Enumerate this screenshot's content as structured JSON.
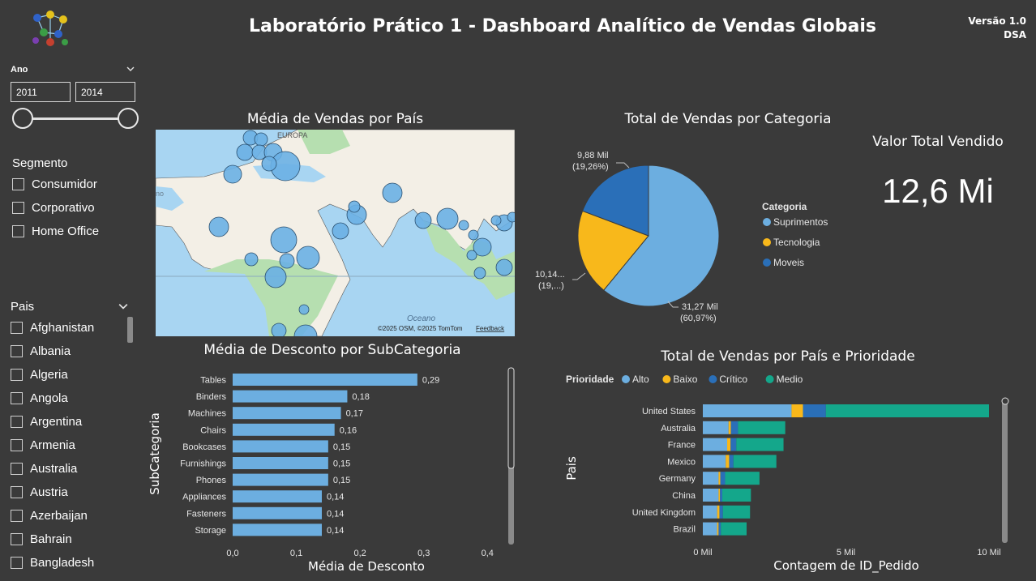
{
  "header": {
    "title": "Laboratório Prático 1 - Dashboard Analítico de Vendas Globais",
    "version": "Versão 1.0",
    "author": "DSA"
  },
  "year_slicer": {
    "label": "Ano",
    "from": "2011",
    "to": "2014"
  },
  "segment_slicer": {
    "title": "Segmento",
    "items": [
      "Consumidor",
      "Corporativo",
      "Home Office"
    ]
  },
  "country_slicer": {
    "title": "Pais",
    "items": [
      "Afghanistan",
      "Albania",
      "Algeria",
      "Angola",
      "Argentina",
      "Armenia",
      "Australia",
      "Austria",
      "Azerbaijan",
      "Bahrain",
      "Bangladesh"
    ]
  },
  "map": {
    "title": "Média de Vendas por País",
    "labels": {
      "europe": "EUROPA",
      "ocean": "Oceano",
      "ocean_left": "no",
      "attribution": "©2025 OSM, ©2025 TomTom",
      "feedback": "Feedback"
    },
    "colors": {
      "water": "#a8d5f2",
      "land": "#f3efe6",
      "green": "#b6dfb0",
      "bubble": "#6ab0e4"
    }
  },
  "pie": {
    "title": "Total de Vendas por Categoria",
    "legend_title": "Categoria",
    "labels": {
      "moveis": [
        "9,88 Mil",
        "(19,26%)"
      ],
      "tecnologia": [
        "10,14...",
        "(19,...)"
      ],
      "suprimentos": [
        "31,27 Mil",
        "(60,97%)"
      ]
    }
  },
  "kpi": {
    "title": "Valor Total Vendido",
    "value": "12,6 Mi"
  },
  "discount_chart": {
    "title": "Média de Desconto por SubCategoria",
    "xlabel": "Média de Desconto",
    "ylabel": "SubCategoria"
  },
  "orders_chart": {
    "title": "Total de Vendas por País e Prioridade",
    "legend_title": "Prioridade",
    "xlabel": "Contagem de ID_Pedido",
    "ylabel": "Pais"
  },
  "chart_data": [
    {
      "type": "pie",
      "title": "Total de Vendas por Categoria",
      "legend_title": "Categoria",
      "slices": [
        {
          "name": "Suprimentos",
          "value": 31.27,
          "label": "31,27 Mil",
          "pct": "60,97%",
          "color": "#6caee0"
        },
        {
          "name": "Tecnologia",
          "value": 10.14,
          "label": "10,14...",
          "pct": "19,...",
          "color": "#f8b81b"
        },
        {
          "name": "Moveis",
          "value": 9.88,
          "label": "9,88 Mil",
          "pct": "19,26%",
          "color": "#2a6fb8"
        }
      ]
    },
    {
      "type": "bar",
      "orientation": "horizontal",
      "title": "Média de Desconto por SubCategoria",
      "xlabel": "Média de Desconto",
      "ylabel": "SubCategoria",
      "categories": [
        "Tables",
        "Binders",
        "Machines",
        "Chairs",
        "Bookcases",
        "Furnishings",
        "Phones",
        "Appliances",
        "Fasteners",
        "Storage"
      ],
      "values": [
        0.29,
        0.18,
        0.17,
        0.16,
        0.15,
        0.15,
        0.15,
        0.14,
        0.14,
        0.14
      ],
      "value_labels": [
        "0,29",
        "0,18",
        "0,17",
        "0,16",
        "0,15",
        "0,15",
        "0,15",
        "0,14",
        "0,14",
        "0,14"
      ],
      "xlim": [
        0,
        0.42
      ],
      "ticks": [
        0,
        0.1,
        0.2,
        0.3,
        0.4
      ],
      "tick_labels": [
        "0,0",
        "0,1",
        "0,2",
        "0,3",
        "0,4"
      ],
      "color": "#6caee0"
    },
    {
      "type": "bar",
      "orientation": "horizontal",
      "stacked": true,
      "title": "Total de Vendas por País e Prioridade",
      "xlabel": "Contagem de ID_Pedido",
      "ylabel": "Pais",
      "legend_title": "Prioridade",
      "categories": [
        "United States",
        "Australia",
        "France",
        "Mexico",
        "Germany",
        "China",
        "United Kingdom",
        "Brazil"
      ],
      "series": [
        {
          "name": "Alto",
          "color": "#6caee0",
          "values": [
            3100,
            900,
            850,
            800,
            550,
            550,
            500,
            500
          ]
        },
        {
          "name": "Baixo",
          "color": "#f8b81b",
          "values": [
            400,
            80,
            120,
            120,
            60,
            50,
            80,
            50
          ]
        },
        {
          "name": "Crítico",
          "color": "#2a6fb8",
          "values": [
            800,
            250,
            200,
            150,
            170,
            80,
            120,
            80
          ]
        },
        {
          "name": "Medio",
          "color": "#14a78b",
          "values": [
            5700,
            1650,
            1650,
            1500,
            1200,
            1000,
            950,
            900
          ]
        }
      ],
      "xlim": [
        0,
        10000
      ],
      "ticks": [
        0,
        5000,
        10000
      ],
      "tick_labels": [
        "0 Mil",
        "5 Mil",
        "10 Mil"
      ]
    }
  ]
}
